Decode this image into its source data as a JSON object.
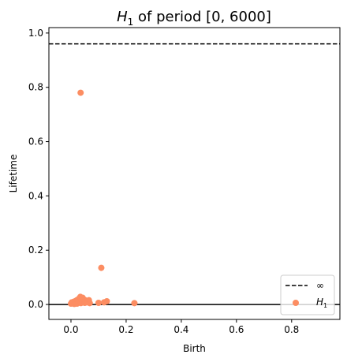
{
  "chart_data": {
    "type": "scatter",
    "title": {
      "symbol": "H",
      "subscript": "1",
      "rest": " of period [0, 6000]"
    },
    "xlabel": "Birth",
    "ylabel": "Lifetime",
    "xlim": [
      -0.08,
      0.975
    ],
    "ylim": [
      -0.055,
      1.02
    ],
    "xticks": [
      0.0,
      0.2,
      0.4,
      0.6,
      0.8
    ],
    "xtick_labels": [
      "0.0",
      "0.2",
      "0.4",
      "0.6",
      "0.8"
    ],
    "yticks": [
      0.0,
      0.2,
      0.4,
      0.6,
      0.8,
      1.0
    ],
    "ytick_labels": [
      "0.0",
      "0.2",
      "0.4",
      "0.6",
      "0.8",
      "1.0"
    ],
    "grid": false,
    "legend_position": "bottom-right",
    "infinity_line": {
      "y": 0.96,
      "label": "∞",
      "color": "#000000",
      "style": "dashed"
    },
    "zero_line": {
      "y": 0.0,
      "color": "#000000"
    },
    "series": [
      {
        "name": "H_1",
        "legend_symbol": "H",
        "legend_subscript": "1",
        "color": "#fc8d62",
        "points": [
          [
            0.035,
            0.78
          ],
          [
            0.11,
            0.135
          ],
          [
            0.23,
            0.005
          ],
          [
            0.0,
            0.003
          ],
          [
            0.003,
            0.008
          ],
          [
            0.006,
            0.004
          ],
          [
            0.01,
            0.01
          ],
          [
            0.012,
            0.002
          ],
          [
            0.015,
            0.012
          ],
          [
            0.018,
            0.006
          ],
          [
            0.02,
            0.015
          ],
          [
            0.022,
            0.003
          ],
          [
            0.025,
            0.018
          ],
          [
            0.028,
            0.008
          ],
          [
            0.03,
            0.022
          ],
          [
            0.032,
            0.012
          ],
          [
            0.034,
            0.028
          ],
          [
            0.036,
            0.005
          ],
          [
            0.038,
            0.02
          ],
          [
            0.04,
            0.015
          ],
          [
            0.042,
            0.025
          ],
          [
            0.045,
            0.01
          ],
          [
            0.048,
            0.018
          ],
          [
            0.05,
            0.006
          ],
          [
            0.052,
            0.015
          ],
          [
            0.055,
            0.012
          ],
          [
            0.058,
            0.008
          ],
          [
            0.06,
            0.01
          ],
          [
            0.065,
            0.016
          ],
          [
            0.068,
            0.005
          ],
          [
            0.1,
            0.006
          ],
          [
            0.12,
            0.008
          ],
          [
            0.13,
            0.012
          ]
        ]
      }
    ]
  }
}
